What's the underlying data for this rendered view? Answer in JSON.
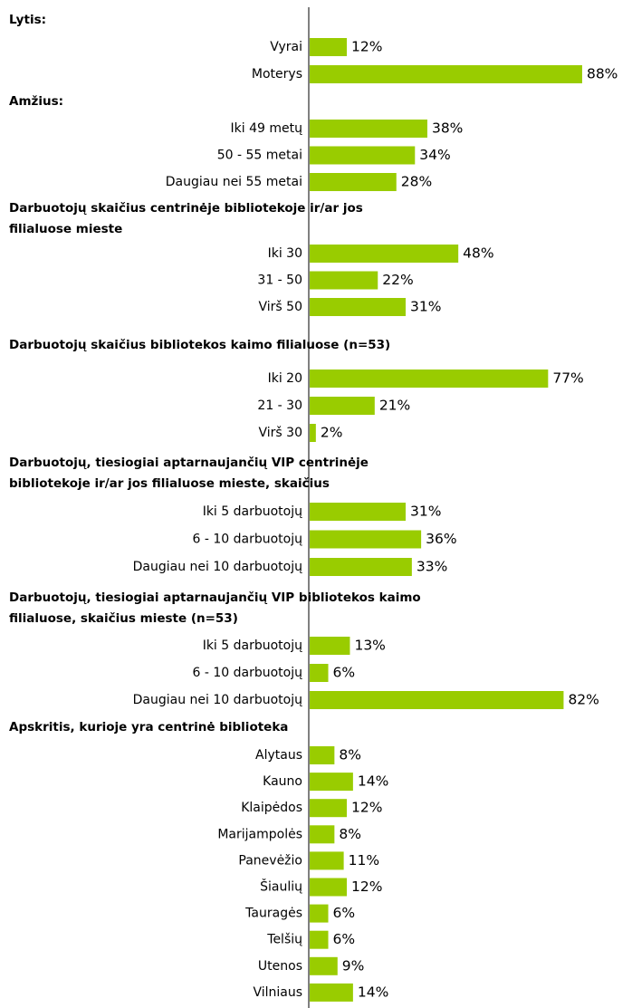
{
  "chart_data": {
    "type": "bar",
    "color": "#99cc00",
    "groups": [
      {
        "title": [
          "Lytis:"
        ],
        "categories": [
          "Vyrai",
          "Moterys"
        ],
        "values": [
          12,
          88
        ],
        "value_labels": [
          "12%",
          "88%"
        ]
      },
      {
        "title": [
          "Amžius:"
        ],
        "categories": [
          "Iki 49 metų",
          "50 - 55 metai",
          "Daugiau nei 55 metai"
        ],
        "values": [
          38,
          34,
          28
        ],
        "value_labels": [
          "38%",
          "34%",
          "28%"
        ]
      },
      {
        "title": [
          "Darbuotojų skaičius centrinėje bibliotekoje ir/ar jos",
          "filialuose mieste"
        ],
        "categories": [
          "Iki 30",
          "31 - 50",
          "Virš 50"
        ],
        "values": [
          48,
          22,
          31
        ],
        "value_labels": [
          "48%",
          "22%",
          "31%"
        ]
      },
      {
        "title": [
          "Darbuotojų skaičius bibliotekos kaimo filialuose (n=53)"
        ],
        "categories": [
          "Iki 20",
          "21 - 30",
          "Virš 30"
        ],
        "values": [
          77,
          21,
          2
        ],
        "value_labels": [
          "77%",
          "21%",
          "2%"
        ]
      },
      {
        "title": [
          "Darbuotojų, tiesiogiai aptarnaujančių VIP centrinėje",
          "bibliotekoje ir/ar jos filialuose mieste, skaičius"
        ],
        "categories": [
          "Iki 5 darbuotojų",
          "6 - 10 darbuotojų",
          "Daugiau nei 10 darbuotojų"
        ],
        "values": [
          31,
          36,
          33
        ],
        "value_labels": [
          "31%",
          "36%",
          "33%"
        ]
      },
      {
        "title": [
          "Darbuotojų, tiesiogiai aptarnaujančių VIP bibliotekos kaimo",
          "filialuose, skaičius mieste (n=53)"
        ],
        "categories": [
          "Iki 5 darbuotojų",
          "6 - 10 darbuotojų",
          "Daugiau nei 10 darbuotojų"
        ],
        "values": [
          13,
          6,
          82
        ],
        "value_labels": [
          "13%",
          "6%",
          "82%"
        ]
      },
      {
        "title": [
          "Apskritis, kurioje yra centrinė biblioteka"
        ],
        "categories": [
          "Alytaus",
          "Kauno",
          "Klaipėdos",
          "Marijampolės",
          "Panevėžio",
          "Šiaulių",
          "Tauragės",
          "Telšių",
          "Utenos",
          "Vilniaus"
        ],
        "values": [
          8,
          14,
          12,
          8,
          11,
          12,
          6,
          6,
          9,
          14
        ],
        "value_labels": [
          "8%",
          "14%",
          "12%",
          "8%",
          "11%",
          "12%",
          "6%",
          "6%",
          "9%",
          "14%"
        ]
      }
    ]
  }
}
